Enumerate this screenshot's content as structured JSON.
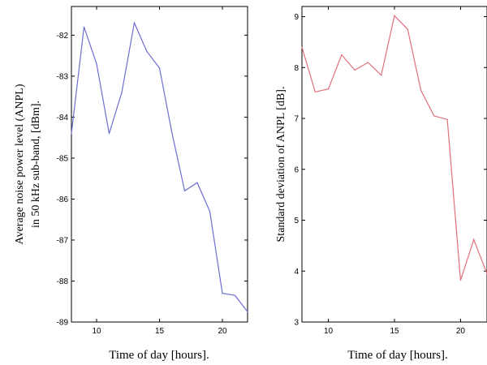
{
  "chart_data": [
    {
      "type": "line",
      "xlabel": "Time of day [hours].",
      "ylabel_lines": [
        "Average noise power level (ANPL)",
        "in 50 kHz sub-band, [dBm]."
      ],
      "xlim": [
        8,
        22
      ],
      "ylim": [
        -89,
        -81.3
      ],
      "x_ticks": [
        10,
        15,
        20
      ],
      "y_ticks": [
        -82,
        -83,
        -84,
        -85,
        -86,
        -87,
        -88,
        -89
      ],
      "line_color": "#6e6ed2",
      "series": [
        {
          "x": [
            8,
            9,
            10,
            11,
            12,
            13,
            14,
            15,
            16,
            17,
            18,
            19,
            20,
            21,
            22
          ],
          "y": [
            -84.4,
            -81.8,
            -82.7,
            -84.4,
            -83.4,
            -81.7,
            -82.4,
            -82.8,
            -84.4,
            -85.8,
            -85.6,
            -86.3,
            -88.3,
            -88.35,
            -88.75
          ]
        }
      ]
    },
    {
      "type": "line",
      "xlabel": "Time of day [hours].",
      "ylabel_lines": [
        "Standard deviation of ANPL [dB]."
      ],
      "xlim": [
        8,
        22
      ],
      "ylim": [
        3,
        9.2
      ],
      "x_ticks": [
        10,
        15,
        20
      ],
      "y_ticks": [
        3,
        4,
        5,
        6,
        7,
        8,
        9
      ],
      "line_color": "#e0707a",
      "series": [
        {
          "x": [
            8,
            9,
            10,
            11,
            12,
            13,
            14,
            15,
            16,
            17,
            18,
            19,
            20,
            21,
            22
          ],
          "y": [
            8.4,
            7.52,
            7.58,
            8.25,
            7.95,
            8.1,
            7.85,
            9.02,
            8.75,
            7.55,
            7.05,
            6.98,
            3.82,
            4.62,
            3.95
          ]
        }
      ]
    }
  ]
}
